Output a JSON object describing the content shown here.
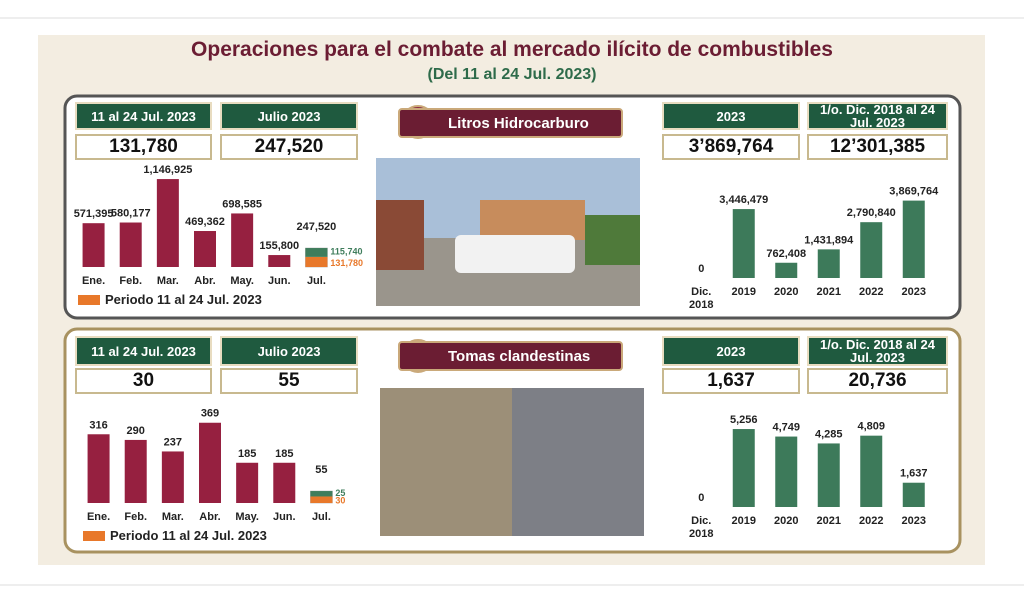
{
  "header": {
    "title": "Operaciones para el combate al mercado ilícito de combustibles",
    "subtitle": "(Del 11 al 24 Jul. 2023)"
  },
  "panels": [
    {
      "label": "Litros Hidrocarburo",
      "stats": [
        {
          "label": "11 al 24 Jul. 2023",
          "value": "131,780"
        },
        {
          "label": "Julio 2023",
          "value": "247,520"
        },
        {
          "label": "2023",
          "value": "3’869,764"
        },
        {
          "label": "1/o. Dic. 2018 al 24 Jul. 2023",
          "value": "12’301,385"
        }
      ]
    },
    {
      "label": "Tomas clandestinas",
      "stats": [
        {
          "label": "11 al 24 Jul. 2023",
          "value": "30"
        },
        {
          "label": "Julio 2023",
          "value": "55"
        },
        {
          "label": "2023",
          "value": "1,637"
        },
        {
          "label": "1/o. Dic. 2018 al 24 Jul. 2023",
          "value": "20,736"
        }
      ]
    }
  ],
  "chart_data": [
    {
      "type": "bar",
      "categories": [
        "Ene.",
        "Feb.",
        "Mar.",
        "Abr.",
        "May.",
        "Jun.",
        "Jul."
      ],
      "values": [
        571395,
        580177,
        1146925,
        469362,
        698585,
        155800,
        247520
      ],
      "value_labels": [
        "571,395",
        "580,177",
        "1,146,925",
        "469,362",
        "698,585",
        "155,800",
        "247,520"
      ],
      "color": "#962040",
      "ylim": [
        0,
        1200000
      ],
      "split": {
        "name": "Periodo 11 al 24 Jul. 2023",
        "values": [
          131780,
          115740
        ],
        "value_labels": [
          "131,780",
          "115,740"
        ],
        "colors": [
          "#e8782a",
          "#3f7d5c"
        ]
      }
    },
    {
      "type": "bar",
      "categories": [
        "Dic. 2018",
        "2019",
        "2020",
        "2021",
        "2022",
        "2023"
      ],
      "values": [
        0,
        3446479,
        762408,
        1431894,
        2790840,
        3869764
      ],
      "value_labels": [
        "0",
        "3,446,479",
        "762,408",
        "1,431,894",
        "2,790,840",
        "3,869,764"
      ],
      "color": "#3d7a5a",
      "ylim": [
        0,
        4000000
      ]
    },
    {
      "type": "bar",
      "categories": [
        "Ene.",
        "Feb.",
        "Mar.",
        "Abr.",
        "May.",
        "Jun.",
        "Jul."
      ],
      "values": [
        316,
        290,
        237,
        369,
        185,
        185,
        55
      ],
      "color": "#962040",
      "ylim": [
        0,
        400
      ],
      "split": {
        "name": "Periodo 11 al 24 Jul. 2023",
        "values": [
          30,
          25
        ],
        "colors": [
          "#e8782a",
          "#3f7d5c"
        ]
      }
    },
    {
      "type": "bar",
      "categories": [
        "Dic. 2018",
        "2019",
        "2020",
        "2021",
        "2022",
        "2023"
      ],
      "values": [
        0,
        5256,
        4749,
        4285,
        4809,
        1637
      ],
      "value_labels": [
        "0",
        "5,256",
        "4,749",
        "4,285",
        "4,809",
        "1,637"
      ],
      "color": "#3d7a5a",
      "ylim": [
        0,
        6000
      ]
    }
  ]
}
